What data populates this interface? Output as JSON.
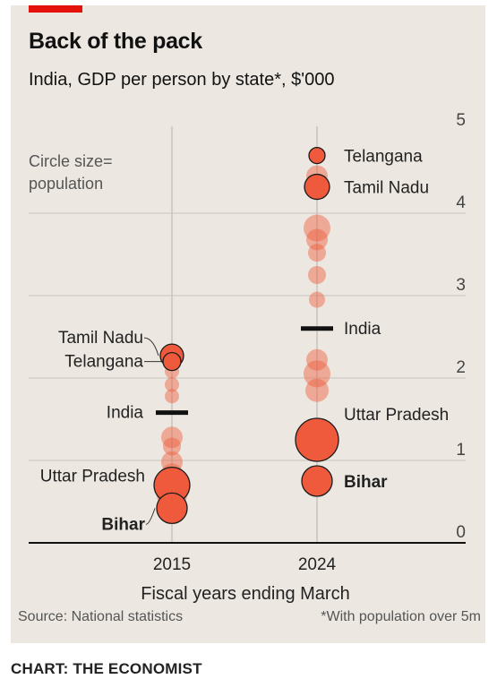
{
  "title": "Back of the pack",
  "subtitle": "India, GDP per person by state*, $'000",
  "source": "Source: National statistics",
  "footnote": "*With population over 5m",
  "credit": "CHART: THE ECONOMIST",
  "legend_note": [
    "Circle size=",
    "population"
  ],
  "colors": {
    "bubble": "#f05a3c",
    "background": "#ece8e1",
    "accent": "#e3120b"
  },
  "chart_data": {
    "type": "scatter",
    "title": "Back of the pack",
    "xlabel": "Fiscal years ending March",
    "ylabel": "",
    "categories": [
      "2015",
      "2024"
    ],
    "ylim": [
      0,
      5
    ],
    "yticks": [
      0,
      1,
      2,
      3,
      4,
      5
    ],
    "grid": true,
    "series": [
      {
        "name": "2015",
        "points": [
          {
            "y": 2.27,
            "r": 13,
            "label": "Tamil Nadu",
            "highlight": true
          },
          {
            "y": 2.2,
            "r": 10,
            "label": "Telangana",
            "highlight": true
          },
          {
            "y": 2.08,
            "r": 8
          },
          {
            "y": 1.92,
            "r": 8
          },
          {
            "y": 1.78,
            "r": 8
          },
          {
            "y": 1.28,
            "r": 12
          },
          {
            "y": 1.17,
            "r": 10
          },
          {
            "y": 0.98,
            "r": 12
          },
          {
            "y": 0.82,
            "r": 13
          },
          {
            "y": 0.7,
            "r": 20,
            "label": "Uttar Pradesh",
            "highlight": true
          },
          {
            "y": 0.58,
            "r": 17
          },
          {
            "y": 0.42,
            "r": 17,
            "label": "Bihar",
            "highlight": true
          }
        ],
        "india": {
          "y": 1.58,
          "label": "India"
        }
      },
      {
        "name": "2024",
        "points": [
          {
            "y": 4.7,
            "r": 9,
            "label": "Telangana",
            "highlight": true
          },
          {
            "y": 4.45,
            "r": 12
          },
          {
            "y": 4.32,
            "r": 14,
            "label": "Tamil Nadu",
            "highlight": true
          },
          {
            "y": 3.82,
            "r": 15
          },
          {
            "y": 3.68,
            "r": 12
          },
          {
            "y": 3.52,
            "r": 10
          },
          {
            "y": 3.25,
            "r": 10
          },
          {
            "y": 2.95,
            "r": 9
          },
          {
            "y": 2.22,
            "r": 12
          },
          {
            "y": 2.05,
            "r": 15
          },
          {
            "y": 1.85,
            "r": 13
          },
          {
            "y": 1.25,
            "r": 24,
            "label": "Uttar Pradesh",
            "highlight": true
          },
          {
            "y": 0.75,
            "r": 17,
            "label": "Bihar",
            "highlight": true
          }
        ],
        "india": {
          "y": 2.6,
          "label": "India"
        }
      }
    ]
  }
}
